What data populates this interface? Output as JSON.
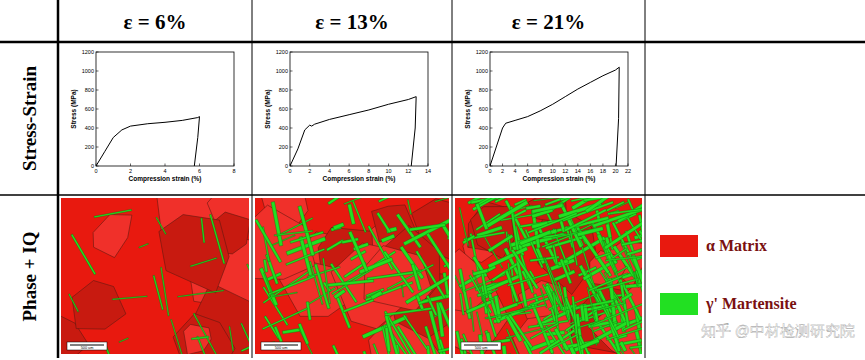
{
  "header": {
    "columns": [
      "ε = 6%",
      "ε = 13%",
      "ε = 21%"
    ],
    "rows": [
      "Stress-Strain",
      "Phase + IQ"
    ]
  },
  "chart_data": [
    {
      "type": "line",
      "color": "#000000",
      "xlabel": "Compression strain (%)",
      "ylabel": "Stress (MPa)",
      "x": [
        0,
        0.5,
        1,
        1.5,
        2,
        3,
        4,
        5,
        5.9,
        6.0,
        5.9,
        5.7
      ],
      "values": [
        0,
        150,
        300,
        380,
        420,
        445,
        460,
        480,
        510,
        520,
        300,
        0
      ],
      "xlim": [
        0,
        8
      ],
      "xticks": [
        0,
        2,
        4,
        6,
        8
      ],
      "ylim": [
        0,
        1200
      ],
      "yticks": [
        0,
        200,
        400,
        600,
        800,
        1000,
        1200
      ]
    },
    {
      "type": "line",
      "color": "#000000",
      "xlabel": "Compression strain (%)",
      "ylabel": "Stress (MPa)",
      "x": [
        0,
        0.8,
        1.5,
        2,
        2.2,
        2.5,
        4,
        6,
        8,
        10,
        12,
        12.8,
        12.7,
        12.3
      ],
      "values": [
        0,
        180,
        380,
        430,
        420,
        440,
        490,
        540,
        590,
        650,
        700,
        730,
        400,
        0
      ],
      "xlim": [
        0,
        14
      ],
      "xticks": [
        0,
        2,
        4,
        6,
        8,
        10,
        12,
        14
      ],
      "ylim": [
        0,
        1200
      ],
      "yticks": [
        0,
        200,
        400,
        600,
        800,
        1000,
        1200
      ]
    },
    {
      "type": "line",
      "color": "#000000",
      "xlabel": "Compression strain (%)",
      "ylabel": "Stress (MPa)",
      "x": [
        0,
        1,
        2,
        2.5,
        4,
        6,
        8,
        10,
        12,
        14,
        16,
        18,
        20,
        20.6,
        20.5,
        20.1
      ],
      "values": [
        0,
        200,
        400,
        450,
        480,
        520,
        580,
        650,
        730,
        810,
        880,
        950,
        1010,
        1040,
        500,
        0
      ],
      "xlim": [
        0,
        22
      ],
      "xticks": [
        0,
        2,
        4,
        6,
        8,
        10,
        12,
        14,
        16,
        18,
        20,
        22
      ],
      "ylim": [
        0,
        1200
      ],
      "yticks": [
        0,
        200,
        400,
        600,
        800,
        1000,
        1200
      ]
    }
  ],
  "maps": [
    {
      "scale_bar": "500 um"
    },
    {
      "scale_bar": "500 um"
    },
    {
      "scale_bar": "500 um"
    }
  ],
  "legend": [
    {
      "label": "α Matrix",
      "color": "#e8190f"
    },
    {
      "label": "γ' Martensite",
      "color": "#22e022"
    }
  ],
  "watermark": "知乎 @中材检测研究院"
}
